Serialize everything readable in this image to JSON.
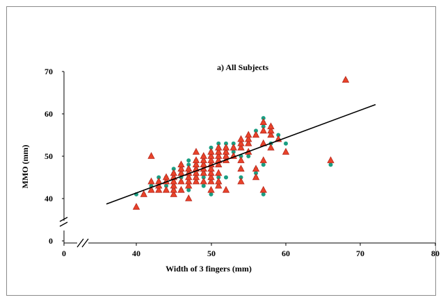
{
  "chart_data": {
    "type": "scatter",
    "title": "a) All Subjects",
    "xlabel": "Width of 3 fingers (mm)",
    "ylabel": "MMO (mm)",
    "x_ticks": [
      "0",
      "40",
      "50",
      "60",
      "70",
      "80"
    ],
    "y_ticks": [
      "0",
      "40",
      "50",
      "60",
      "70"
    ],
    "xlim": [
      35,
      80
    ],
    "ylim": [
      35,
      70
    ],
    "axis_breaks": true,
    "grid": false,
    "legend": "none",
    "colors": {
      "circle": "#1a9e82",
      "triangle_fill": "#e8432a",
      "triangle_stroke": "#b8251a",
      "line": "#000000"
    },
    "series": [
      {
        "marker": "circle",
        "points": [
          [
            40,
            41
          ],
          [
            41,
            41
          ],
          [
            42,
            42
          ],
          [
            42,
            43
          ],
          [
            42,
            44
          ],
          [
            43,
            43
          ],
          [
            43,
            44
          ],
          [
            43,
            45
          ],
          [
            44,
            43
          ],
          [
            44,
            44
          ],
          [
            44,
            45
          ],
          [
            45,
            42
          ],
          [
            45,
            43
          ],
          [
            45,
            44
          ],
          [
            45,
            45
          ],
          [
            45,
            46
          ],
          [
            45,
            47
          ],
          [
            46,
            42
          ],
          [
            46,
            44
          ],
          [
            46,
            45
          ],
          [
            46,
            46
          ],
          [
            46,
            47
          ],
          [
            46,
            48
          ],
          [
            47,
            42
          ],
          [
            47,
            44
          ],
          [
            47,
            45
          ],
          [
            47,
            46
          ],
          [
            47,
            47
          ],
          [
            47,
            48
          ],
          [
            47,
            49
          ],
          [
            48,
            44
          ],
          [
            48,
            45
          ],
          [
            48,
            46
          ],
          [
            48,
            47
          ],
          [
            48,
            48
          ],
          [
            48,
            49
          ],
          [
            49,
            43
          ],
          [
            49,
            45
          ],
          [
            49,
            46
          ],
          [
            49,
            47
          ],
          [
            49,
            48
          ],
          [
            49,
            49
          ],
          [
            49,
            50
          ],
          [
            50,
            41
          ],
          [
            50,
            44
          ],
          [
            50,
            45
          ],
          [
            50,
            46
          ],
          [
            50,
            47
          ],
          [
            50,
            48
          ],
          [
            50,
            49
          ],
          [
            50,
            50
          ],
          [
            50,
            51
          ],
          [
            50,
            52
          ],
          [
            51,
            43
          ],
          [
            51,
            44
          ],
          [
            51,
            45
          ],
          [
            51,
            48
          ],
          [
            51,
            49
          ],
          [
            51,
            50
          ],
          [
            51,
            51
          ],
          [
            51,
            52
          ],
          [
            51,
            53
          ],
          [
            52,
            45
          ],
          [
            52,
            49
          ],
          [
            52,
            50
          ],
          [
            52,
            51
          ],
          [
            52,
            52
          ],
          [
            52,
            53
          ],
          [
            53,
            50
          ],
          [
            53,
            51
          ],
          [
            53,
            52
          ],
          [
            53,
            53
          ],
          [
            54,
            45
          ],
          [
            54,
            47
          ],
          [
            54,
            50
          ],
          [
            54,
            52
          ],
          [
            54,
            53
          ],
          [
            55,
            50
          ],
          [
            55,
            51
          ],
          [
            55,
            53
          ],
          [
            55,
            54
          ],
          [
            56,
            45
          ],
          [
            56,
            46
          ],
          [
            56,
            47
          ],
          [
            56,
            55
          ],
          [
            56,
            56
          ],
          [
            57,
            41
          ],
          [
            57,
            48
          ],
          [
            57,
            57
          ],
          [
            57,
            58
          ],
          [
            57,
            59
          ],
          [
            58,
            53
          ],
          [
            58,
            55
          ],
          [
            58,
            56
          ],
          [
            58,
            57
          ],
          [
            59,
            54
          ],
          [
            59,
            55
          ],
          [
            60,
            53
          ],
          [
            66,
            48
          ],
          [
            68,
            68
          ]
        ]
      },
      {
        "marker": "triangle",
        "points": [
          [
            40,
            38
          ],
          [
            41,
            41
          ],
          [
            42,
            42
          ],
          [
            42,
            44
          ],
          [
            42,
            50
          ],
          [
            43,
            42
          ],
          [
            43,
            43
          ],
          [
            43,
            44
          ],
          [
            44,
            42
          ],
          [
            44,
            44
          ],
          [
            44,
            45
          ],
          [
            45,
            41
          ],
          [
            45,
            42
          ],
          [
            45,
            43
          ],
          [
            45,
            44
          ],
          [
            45,
            45
          ],
          [
            45,
            46
          ],
          [
            46,
            42
          ],
          [
            46,
            44
          ],
          [
            46,
            46
          ],
          [
            46,
            47
          ],
          [
            46,
            48
          ],
          [
            47,
            40
          ],
          [
            47,
            43
          ],
          [
            47,
            44
          ],
          [
            47,
            45
          ],
          [
            47,
            46
          ],
          [
            47,
            47
          ],
          [
            48,
            44
          ],
          [
            48,
            45
          ],
          [
            48,
            46
          ],
          [
            48,
            47
          ],
          [
            48,
            48
          ],
          [
            48,
            49
          ],
          [
            48,
            51
          ],
          [
            49,
            44
          ],
          [
            49,
            46
          ],
          [
            49,
            47
          ],
          [
            49,
            48
          ],
          [
            49,
            49
          ],
          [
            49,
            50
          ],
          [
            50,
            42
          ],
          [
            50,
            44
          ],
          [
            50,
            45
          ],
          [
            50,
            46
          ],
          [
            50,
            47
          ],
          [
            50,
            48
          ],
          [
            50,
            49
          ],
          [
            50,
            50
          ],
          [
            50,
            51
          ],
          [
            51,
            43
          ],
          [
            51,
            44
          ],
          [
            51,
            46
          ],
          [
            51,
            48
          ],
          [
            51,
            49
          ],
          [
            51,
            50
          ],
          [
            51,
            51
          ],
          [
            51,
            52
          ],
          [
            52,
            42
          ],
          [
            52,
            49
          ],
          [
            52,
            50
          ],
          [
            52,
            51
          ],
          [
            52,
            52
          ],
          [
            53,
            50
          ],
          [
            53,
            52
          ],
          [
            54,
            44
          ],
          [
            54,
            47
          ],
          [
            54,
            49
          ],
          [
            54,
            52
          ],
          [
            54,
            53
          ],
          [
            54,
            54
          ],
          [
            55,
            51
          ],
          [
            55,
            53
          ],
          [
            55,
            54
          ],
          [
            55,
            55
          ],
          [
            56,
            45
          ],
          [
            56,
            47
          ],
          [
            56,
            55
          ],
          [
            57,
            42
          ],
          [
            57,
            49
          ],
          [
            57,
            53
          ],
          [
            57,
            56
          ],
          [
            57,
            58
          ],
          [
            58,
            52
          ],
          [
            58,
            55
          ],
          [
            58,
            56
          ],
          [
            58,
            57
          ],
          [
            59,
            54
          ],
          [
            60,
            51
          ],
          [
            66,
            49
          ],
          [
            68,
            68
          ]
        ]
      }
    ],
    "trendline": {
      "x": [
        36,
        72
      ],
      "y": [
        38.7,
        62.2
      ]
    }
  }
}
